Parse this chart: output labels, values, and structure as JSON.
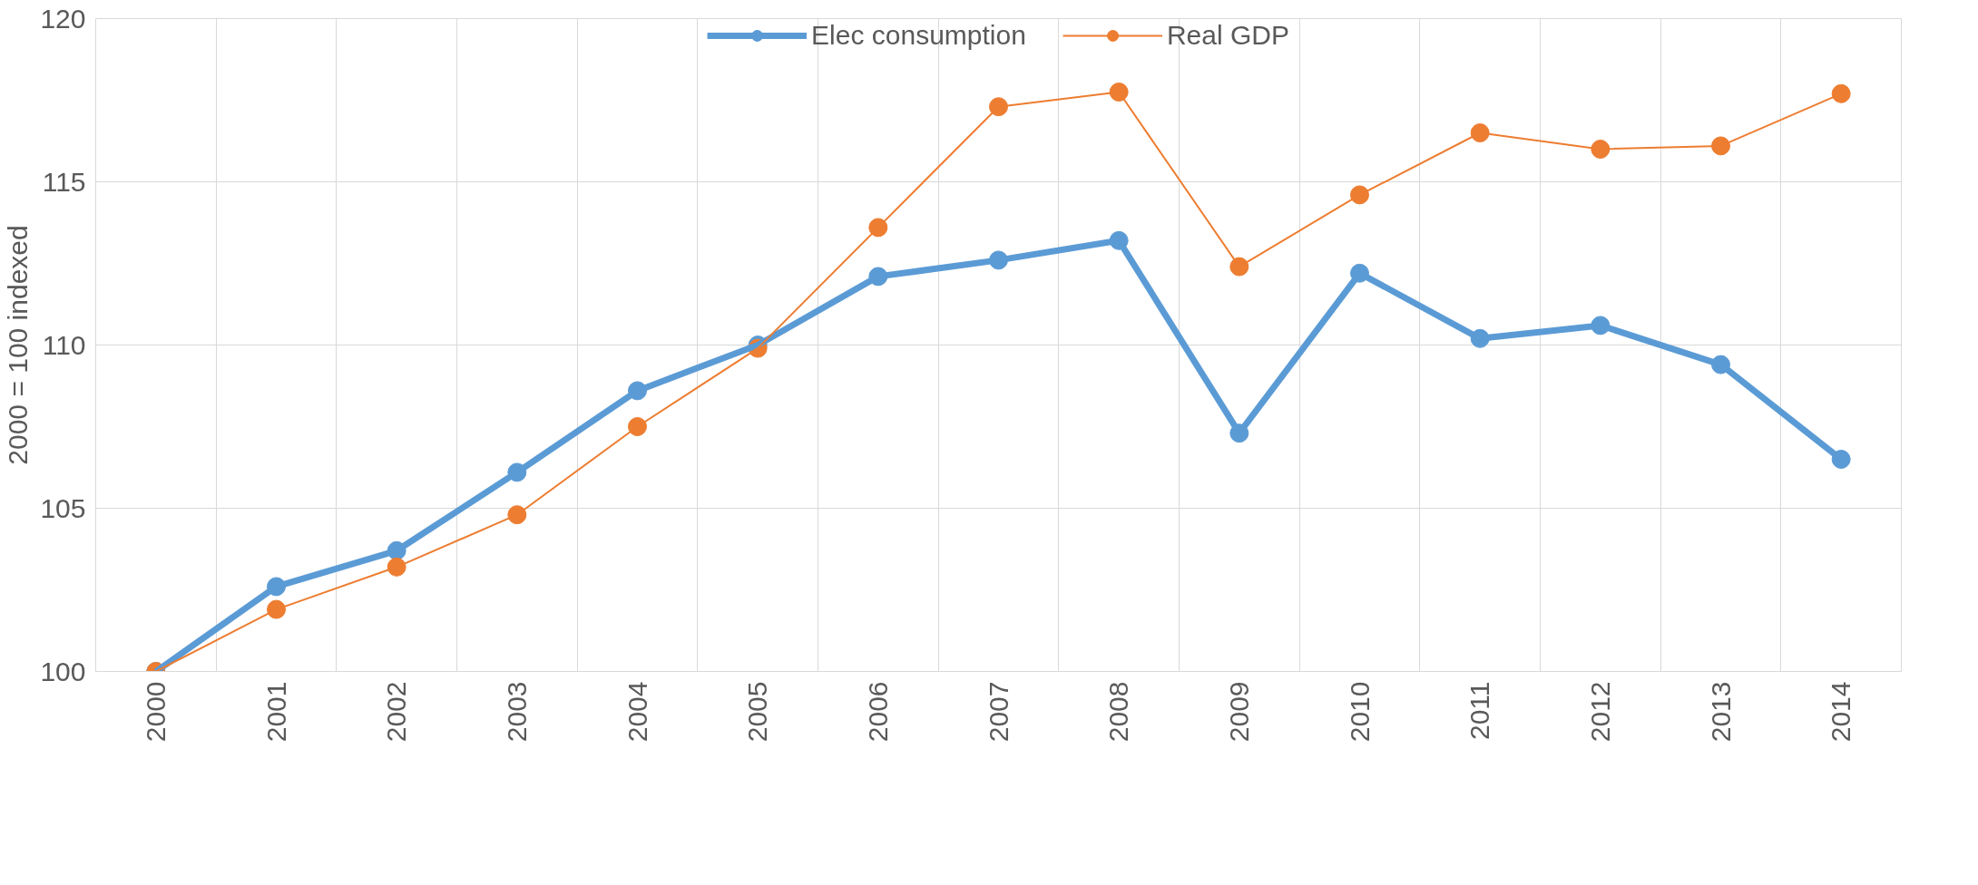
{
  "chart_data": {
    "type": "line",
    "ylabel": "2000 = 100 indexed",
    "categories": [
      "2000",
      "2001",
      "2002",
      "2003",
      "2004",
      "2005",
      "2006",
      "2007",
      "2008",
      "2009",
      "2010",
      "2011",
      "2012",
      "2013",
      "2014"
    ],
    "series": [
      {
        "name": "Elec consumption",
        "color": "#5b9bd5",
        "values": [
          100,
          102.6,
          103.7,
          106.1,
          108.6,
          110.0,
          112.1,
          112.6,
          113.2,
          107.3,
          112.2,
          110.2,
          110.6,
          109.4,
          106.5
        ]
      },
      {
        "name": "Real GDP",
        "color": "#ed7d31",
        "values": [
          100,
          101.9,
          103.2,
          104.8,
          107.5,
          109.9,
          113.6,
          117.3,
          117.75,
          112.4,
          114.6,
          116.5,
          116.0,
          116.1,
          117.7
        ]
      }
    ],
    "ylim": [
      100,
      120
    ],
    "yticks": [
      100,
      105,
      110,
      115,
      120
    ],
    "grid": true,
    "legend": "top",
    "marker": "circle",
    "line_style": "solid"
  }
}
